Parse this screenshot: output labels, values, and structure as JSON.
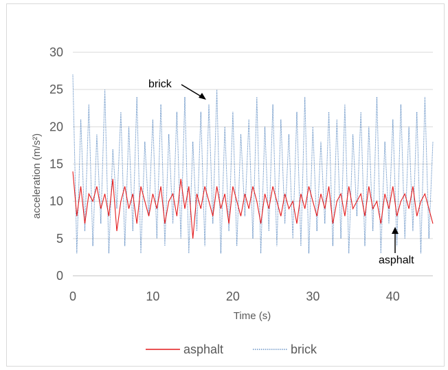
{
  "chart_data": {
    "type": "line",
    "title": "",
    "xlabel": "Time (s)",
    "ylabel": "acceleration (m/s²)",
    "xlim": [
      0,
      45
    ],
    "ylim": [
      0,
      30
    ],
    "x_ticks": [
      0,
      10,
      20,
      30,
      40
    ],
    "y_ticks": [
      0,
      5,
      10,
      15,
      20,
      25,
      30
    ],
    "grid": "horizontal",
    "legend_position": "bottom",
    "annotations": [
      {
        "text": "brick",
        "target_series": "brick"
      },
      {
        "text": "asphalt",
        "target_series": "asphalt"
      }
    ],
    "series": [
      {
        "name": "asphalt",
        "color": "#e31a1c",
        "style": "solid",
        "x": [
          0,
          0.5,
          1,
          1.5,
          2,
          2.5,
          3,
          3.5,
          4,
          4.5,
          5,
          5.5,
          6,
          6.5,
          7,
          7.5,
          8,
          8.5,
          9,
          9.5,
          10,
          10.5,
          11,
          11.5,
          12,
          12.5,
          13,
          13.5,
          14,
          14.5,
          15,
          15.5,
          16,
          16.5,
          17,
          17.5,
          18,
          18.5,
          19,
          19.5,
          20,
          20.5,
          21,
          21.5,
          22,
          22.5,
          23,
          23.5,
          24,
          24.5,
          25,
          25.5,
          26,
          26.5,
          27,
          27.5,
          28,
          28.5,
          29,
          29.5,
          30,
          30.5,
          31,
          31.5,
          32,
          32.5,
          33,
          33.5,
          34,
          34.5,
          35,
          35.5,
          36,
          36.5,
          37,
          37.5,
          38,
          38.5,
          39,
          39.5,
          40,
          40.5,
          41,
          41.5,
          42,
          42.5,
          43,
          43.5,
          44,
          44.5,
          45
        ],
        "values": [
          14,
          8,
          12,
          7,
          11,
          10,
          12,
          9,
          11,
          8,
          13,
          6,
          10,
          12,
          9,
          11,
          7,
          12,
          10,
          8,
          11,
          9,
          12,
          7,
          10,
          11,
          8,
          13,
          9,
          12,
          5,
          11,
          9,
          12,
          10,
          8,
          12,
          9,
          11,
          7,
          12,
          10,
          8,
          11,
          9,
          12,
          10,
          7,
          11,
          9,
          12,
          10,
          8,
          11,
          9,
          10,
          7,
          11,
          9,
          12,
          10,
          8,
          11,
          9,
          12,
          7,
          10,
          11,
          8,
          12,
          9,
          10,
          11,
          8,
          12,
          9,
          10,
          7,
          11,
          9,
          12,
          8,
          10,
          11,
          9,
          12,
          8,
          10,
          11,
          9,
          7
        ]
      },
      {
        "name": "brick",
        "color": "#4a7ebb",
        "style": "dotted",
        "x": [
          0,
          0.5,
          1,
          1.5,
          2,
          2.5,
          3,
          3.5,
          4,
          4.5,
          5,
          5.5,
          6,
          6.5,
          7,
          7.5,
          8,
          8.5,
          9,
          9.5,
          10,
          10.5,
          11,
          11.5,
          12,
          12.5,
          13,
          13.5,
          14,
          14.5,
          15,
          15.5,
          16,
          16.5,
          17,
          17.5,
          18,
          18.5,
          19,
          19.5,
          20,
          20.5,
          21,
          21.5,
          22,
          22.5,
          23,
          23.5,
          24,
          24.5,
          25,
          25.5,
          26,
          26.5,
          27,
          27.5,
          28,
          28.5,
          29,
          29.5,
          30,
          30.5,
          31,
          31.5,
          32,
          32.5,
          33,
          33.5,
          34,
          34.5,
          35,
          35.5,
          36,
          36.5,
          37,
          37.5,
          38,
          38.5,
          39,
          39.5,
          40,
          40.5,
          41,
          41.5,
          42,
          42.5,
          43,
          43.5,
          44,
          44.5,
          45
        ],
        "values": [
          27,
          3,
          21,
          6,
          23,
          4,
          19,
          7,
          25,
          3,
          17,
          9,
          22,
          4,
          20,
          6,
          24,
          3,
          18,
          8,
          21,
          5,
          23,
          4,
          19,
          7,
          22,
          5,
          24,
          3,
          18,
          6,
          22,
          4,
          23,
          7,
          25,
          3,
          20,
          6,
          22,
          4,
          19,
          8,
          21,
          5,
          24,
          3,
          20,
          6,
          23,
          4,
          21,
          7,
          19,
          5,
          22,
          4,
          24,
          3,
          20,
          6,
          18,
          7,
          22,
          4,
          21,
          5,
          23,
          3,
          19,
          8,
          22,
          4,
          20,
          6,
          24,
          3,
          18,
          7,
          21,
          4,
          23,
          5,
          20,
          6,
          22,
          3,
          24,
          5,
          18
        ]
      }
    ]
  }
}
